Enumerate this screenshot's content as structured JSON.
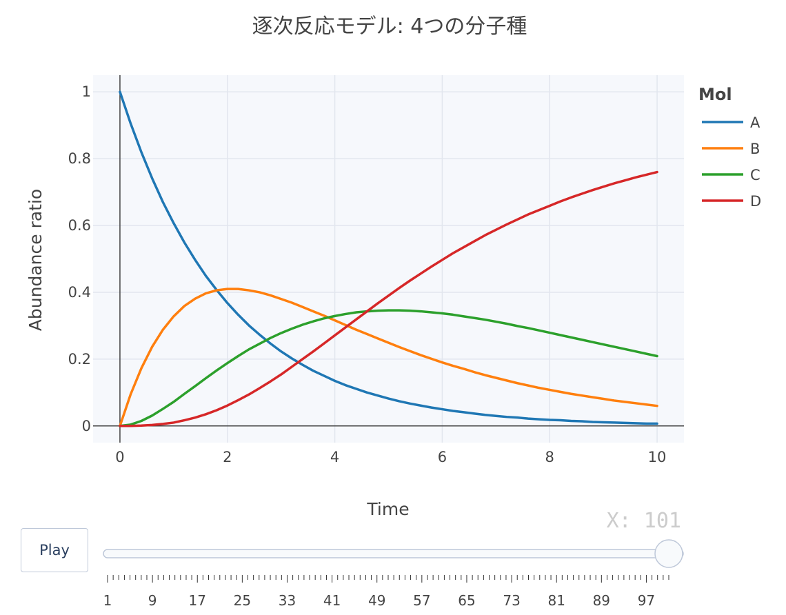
{
  "colors": {
    "A": "#1f77b4",
    "B": "#ff7f0e",
    "C": "#2ca02c",
    "D": "#d62728",
    "plot_bg": "#f6f8fc",
    "grid": "#e2e6ee",
    "text": "#444444"
  },
  "chart_data": {
    "type": "line",
    "title": "逐次反応モデル: 4つの分子種",
    "xlabel": "Time",
    "ylabel": "Abundance ratio",
    "xlim": [
      -0.5,
      10.5
    ],
    "ylim": [
      -0.05,
      1.05
    ],
    "xticks": [
      0,
      2,
      4,
      6,
      8,
      10
    ],
    "xtick_labels": [
      "0",
      "2",
      "4",
      "6",
      "8",
      "10"
    ],
    "yticks": [
      0,
      0.2,
      0.4,
      0.6,
      0.8,
      1
    ],
    "ytick_labels": [
      "0",
      "0.2",
      "0.4",
      "0.6",
      "0.8",
      "1"
    ],
    "grid": true,
    "legend": {
      "title": "Mol",
      "placement": "right"
    },
    "x": [
      0,
      0.2,
      0.4,
      0.6,
      0.8,
      1,
      1.2,
      1.4,
      1.6,
      1.8,
      2,
      2.2,
      2.4,
      2.6,
      2.8,
      3,
      3.2,
      3.4,
      3.6,
      3.8,
      4,
      4.2,
      4.4,
      4.6,
      4.8,
      5,
      5.2,
      5.4,
      5.6,
      5.8,
      6,
      6.2,
      6.4,
      6.6,
      6.8,
      7,
      7.2,
      7.4,
      7.6,
      7.8,
      8,
      8.2,
      8.4,
      8.6,
      8.8,
      9,
      9.2,
      9.4,
      9.6,
      9.8,
      10
    ],
    "series": [
      {
        "name": "A",
        "values": [
          1,
          0.905,
          0.819,
          0.741,
          0.67,
          0.607,
          0.549,
          0.497,
          0.449,
          0.407,
          0.368,
          0.333,
          0.301,
          0.273,
          0.247,
          0.223,
          0.202,
          0.183,
          0.165,
          0.15,
          0.135,
          0.122,
          0.111,
          0.1,
          0.091,
          0.082,
          0.074,
          0.067,
          0.061,
          0.055,
          0.05,
          0.045,
          0.041,
          0.037,
          0.033,
          0.03,
          0.027,
          0.025,
          0.022,
          0.02,
          0.018,
          0.017,
          0.015,
          0.014,
          0.012,
          0.011,
          0.01,
          0.009,
          0.008,
          0.007,
          0.007
        ]
      },
      {
        "name": "B",
        "values": [
          0,
          0.095,
          0.173,
          0.237,
          0.288,
          0.328,
          0.359,
          0.381,
          0.397,
          0.406,
          0.41,
          0.41,
          0.406,
          0.4,
          0.391,
          0.38,
          0.369,
          0.356,
          0.343,
          0.33,
          0.316,
          0.302,
          0.288,
          0.275,
          0.262,
          0.249,
          0.236,
          0.224,
          0.212,
          0.201,
          0.19,
          0.18,
          0.171,
          0.161,
          0.152,
          0.144,
          0.136,
          0.128,
          0.121,
          0.114,
          0.108,
          0.102,
          0.096,
          0.091,
          0.086,
          0.081,
          0.076,
          0.072,
          0.068,
          0.064,
          0.06
        ]
      },
      {
        "name": "C",
        "values": [
          0,
          0.004,
          0.015,
          0.031,
          0.051,
          0.072,
          0.096,
          0.119,
          0.143,
          0.166,
          0.188,
          0.209,
          0.229,
          0.246,
          0.263,
          0.278,
          0.291,
          0.303,
          0.313,
          0.322,
          0.329,
          0.335,
          0.34,
          0.343,
          0.345,
          0.346,
          0.346,
          0.345,
          0.343,
          0.34,
          0.337,
          0.333,
          0.328,
          0.323,
          0.318,
          0.312,
          0.306,
          0.299,
          0.293,
          0.286,
          0.279,
          0.272,
          0.265,
          0.258,
          0.251,
          0.244,
          0.237,
          0.23,
          0.223,
          0.216,
          0.209
        ]
      },
      {
        "name": "D",
        "values": [
          0,
          0.0001,
          0.001,
          0.003,
          0.006,
          0.01,
          0.017,
          0.025,
          0.035,
          0.047,
          0.061,
          0.077,
          0.094,
          0.113,
          0.133,
          0.154,
          0.177,
          0.2,
          0.223,
          0.247,
          0.271,
          0.295,
          0.319,
          0.343,
          0.367,
          0.39,
          0.413,
          0.435,
          0.456,
          0.477,
          0.497,
          0.517,
          0.535,
          0.553,
          0.571,
          0.587,
          0.603,
          0.618,
          0.633,
          0.646,
          0.659,
          0.672,
          0.684,
          0.695,
          0.706,
          0.716,
          0.726,
          0.735,
          0.744,
          0.752,
          0.76
        ]
      }
    ]
  },
  "controls": {
    "play_label": "Play",
    "slider": {
      "current_label": "X: 101",
      "min": 1,
      "max": 101,
      "value": 101,
      "tick_labels": [
        "1",
        "9",
        "17",
        "25",
        "33",
        "41",
        "49",
        "57",
        "65",
        "73",
        "81",
        "89",
        "97"
      ]
    }
  }
}
